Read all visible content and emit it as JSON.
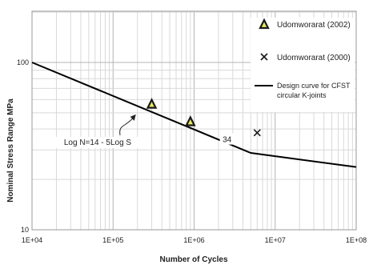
{
  "chart_data": {
    "type": "line",
    "title": "",
    "xlabel": "Number of Cycles",
    "ylabel": "Nominal Stress Range MPa",
    "x_scale": "log",
    "y_scale": "log",
    "xlim": [
      10000,
      100000000
    ],
    "ylim": [
      10,
      200
    ],
    "x_tick_labels": [
      "1E+04",
      "1E+05",
      "1E+06",
      "1E+07",
      "1E+08"
    ],
    "y_tick_labels": [
      "10",
      "100"
    ],
    "grid": true,
    "legend_position": "right",
    "series": [
      {
        "name": "Design curve for CFST circular K-joints",
        "kind": "line",
        "color": "#000000",
        "x": [
          10000,
          5000000,
          100000000
        ],
        "y": [
          100,
          28.8,
          23.7
        ]
      },
      {
        "name": "Udomworarat (2002)",
        "kind": "scatter",
        "marker": "triangle",
        "color": "#1a1a1a",
        "fill": "#e6e85a",
        "x": [
          300000,
          900000
        ],
        "y": [
          56,
          44
        ]
      },
      {
        "name": "Udomworarat (2000)",
        "kind": "scatter",
        "marker": "x",
        "color": "#1a1a1a",
        "x": [
          6000000
        ],
        "y": [
          38
        ]
      }
    ],
    "annotations": [
      {
        "text": "Log N=14 - 5Log S",
        "x": 200000,
        "y": 49.5,
        "arrow": true
      },
      {
        "text": "34",
        "x": 2550000,
        "y": 34.5,
        "arrow": false
      }
    ]
  }
}
